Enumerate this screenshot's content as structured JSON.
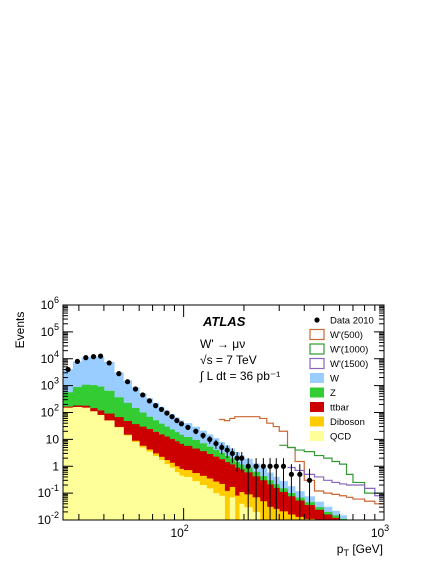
{
  "chart_data": {
    "type": "area",
    "logx": true,
    "logy": true,
    "xlim": [
      25,
      1000
    ],
    "ylim": [
      0.01,
      1000000
    ],
    "xlabel": "p_T [GeV]",
    "ylabel": "Events",
    "x_tick_labels": [
      "10^2",
      "10^3"
    ],
    "y_tick_labels": [
      "10^-2",
      "10^-1",
      "1",
      "10",
      "10^2",
      "10^3",
      "10^4",
      "10^5",
      "10^6"
    ],
    "annotations": {
      "experiment": "ATLAS",
      "process": "W' → μν",
      "energy": "√s = 7 TeV",
      "luminosity": "∫ L dt = 36 pb⁻¹"
    },
    "legend_position": "top-right",
    "bin_edges": [
      25,
      28,
      31,
      34,
      37,
      40,
      45,
      50,
      55,
      60,
      65,
      70,
      75,
      80,
      85,
      90,
      95,
      100,
      110,
      120,
      130,
      140,
      150,
      160,
      170,
      180,
      190,
      200,
      220,
      240,
      260,
      280,
      300,
      330,
      360,
      400,
      450,
      500,
      550,
      600,
      650,
      700,
      800,
      900,
      1000
    ],
    "stacked_backgrounds": [
      {
        "name": "QCD",
        "color": "#ffff99",
        "values": [
          150,
          160,
          150,
          110,
          80,
          50,
          28,
          14,
          8,
          5,
          3.5,
          2.4,
          1.7,
          1.2,
          0.9,
          0.6,
          0.45,
          0.4,
          0.28,
          0.2,
          0.15,
          0.1,
          0.08,
          0.001,
          0.07,
          0.001,
          0.04,
          0.03,
          0.02,
          0.01,
          0.001,
          0.001,
          0.001,
          0.001,
          0.001,
          0.001,
          0.001,
          0.001,
          0.001,
          0.001,
          0.001,
          0.001,
          0.001,
          0.001
        ]
      },
      {
        "name": "Diboson",
        "color": "#ffcc00",
        "values": [
          0.5,
          0.7,
          0.9,
          1,
          1.1,
          1.1,
          1.1,
          1,
          0.9,
          0.8,
          0.7,
          0.6,
          0.55,
          0.5,
          0.45,
          0.4,
          0.35,
          0.32,
          0.28,
          0.24,
          0.2,
          0.17,
          0.14,
          0.12,
          0.1,
          0.08,
          0.07,
          0.06,
          0.05,
          0.04,
          0.03,
          0.025,
          0.02,
          0.015,
          0.012,
          0.01,
          0.008,
          0.005,
          0.004,
          0.003,
          0.002,
          0.002,
          0.001,
          0.001
        ]
      },
      {
        "name": "ttbar",
        "color": "#cc0000",
        "values": [
          15,
          22,
          28,
          34,
          38,
          40,
          38,
          33,
          28,
          24,
          20,
          16,
          13,
          11,
          9,
          7.5,
          6,
          5,
          4,
          3.2,
          2.5,
          2,
          1.6,
          1.3,
          1,
          0.8,
          0.65,
          0.5,
          0.35,
          0.25,
          0.18,
          0.13,
          0.09,
          0.06,
          0.04,
          0.025,
          0.015,
          0.01,
          0.007,
          0.005,
          0.003,
          0.002,
          0.001,
          0.001
        ]
      },
      {
        "name": "Z",
        "color": "#33cc33",
        "values": [
          400,
          700,
          900,
          900,
          800,
          550,
          300,
          180,
          110,
          70,
          45,
          32,
          23,
          17,
          13,
          10,
          8,
          6.5,
          5,
          3.5,
          2.5,
          1.8,
          1.3,
          1,
          0.75,
          0.55,
          0.4,
          0.3,
          0.2,
          0.13,
          0.09,
          0.06,
          0.04,
          0.025,
          0.015,
          0.01,
          0.006,
          0.004,
          0.003,
          0.002,
          0.001,
          0.001,
          0.001,
          0.001
        ]
      },
      {
        "name": "W",
        "color": "#99ccff",
        "values": [
          3500,
          7000,
          10000,
          11000,
          10500,
          7000,
          2700,
          1300,
          700,
          420,
          270,
          180,
          125,
          90,
          65,
          48,
          36,
          28,
          20,
          14,
          10,
          7,
          5,
          3.6,
          2.6,
          1.9,
          1.4,
          1,
          0.65,
          0.42,
          0.28,
          0.19,
          0.13,
          0.08,
          0.05,
          0.03,
          0.018,
          0.011,
          0.007,
          0.004,
          0.003,
          0.002,
          0.001,
          0.001
        ]
      }
    ],
    "signal_lines": [
      {
        "name": "W'(500)",
        "color": "#cc6633",
        "values": [
          null,
          null,
          null,
          null,
          null,
          null,
          null,
          null,
          null,
          null,
          null,
          null,
          null,
          null,
          null,
          null,
          null,
          null,
          null,
          null,
          null,
          null,
          55,
          50,
          60,
          70,
          70,
          70,
          70,
          60,
          40,
          30,
          20,
          5,
          1.5,
          0.3,
          0.12,
          0.1,
          0.09,
          0.08,
          0.07,
          0.06,
          0.05,
          0.04
        ]
      },
      {
        "name": "W'(1000)",
        "color": "#339933",
        "values": [
          null,
          null,
          null,
          null,
          null,
          null,
          null,
          null,
          null,
          null,
          null,
          null,
          null,
          null,
          null,
          null,
          null,
          null,
          null,
          null,
          null,
          null,
          null,
          null,
          null,
          null,
          null,
          null,
          null,
          null,
          null,
          null,
          6,
          5,
          4,
          3.5,
          2.5,
          2,
          1.5,
          1.2,
          0.5,
          0.25,
          0.1,
          0.1
        ]
      },
      {
        "name": "W'(1500)",
        "color": "#8866bb",
        "values": [
          null,
          null,
          null,
          null,
          null,
          null,
          null,
          null,
          null,
          null,
          null,
          null,
          null,
          null,
          null,
          null,
          null,
          null,
          null,
          null,
          null,
          null,
          null,
          null,
          null,
          null,
          null,
          null,
          null,
          null,
          null,
          null,
          null,
          0.9,
          0.7,
          0.5,
          0.4,
          0.3,
          0.25,
          0.22,
          0.2,
          0.2,
          0.15,
          0.08
        ]
      }
    ],
    "data_points": {
      "name": "Data 2010",
      "x": [
        26.5,
        29.5,
        32.5,
        35.5,
        38.5,
        42.5,
        47.5,
        52.5,
        57.5,
        62.5,
        67.5,
        72.5,
        77.5,
        82.5,
        87.5,
        92.5,
        97.5,
        105,
        115,
        125,
        135,
        145,
        155,
        165,
        175,
        185,
        195,
        210,
        230,
        250,
        270,
        290,
        315,
        345,
        380,
        425
      ],
      "y": [
        4000,
        8000,
        11000,
        12000,
        12500,
        7000,
        2800,
        1400,
        750,
        450,
        270,
        180,
        130,
        95,
        70,
        50,
        38,
        28,
        20,
        14,
        10,
        7,
        5,
        4,
        3,
        2,
        2,
        1,
        1,
        1,
        1,
        1,
        1,
        0.5,
        0.5,
        0.3
      ],
      "yerr": [
        63,
        89,
        105,
        110,
        112,
        84,
        53,
        37,
        27,
        21,
        16,
        13,
        11,
        10,
        8,
        7,
        6,
        5,
        4.5,
        3.7,
        3.2,
        2.6,
        2.2,
        2,
        1.7,
        1.4,
        1.4,
        1,
        1,
        1,
        1,
        1,
        1,
        0.7,
        0.7,
        0.5
      ]
    },
    "legend": [
      {
        "label": "Data 2010",
        "kind": "marker",
        "color": "#000000"
      },
      {
        "label": "W'(500)",
        "kind": "line-box",
        "color": "#cc6633"
      },
      {
        "label": "W'(1000)",
        "kind": "line-box",
        "color": "#339933"
      },
      {
        "label": "W'(1500)",
        "kind": "line-box",
        "color": "#8866bb"
      },
      {
        "label": "W",
        "kind": "fill",
        "color": "#99ccff"
      },
      {
        "label": "Z",
        "kind": "fill",
        "color": "#33cc33"
      },
      {
        "label": "ttbar",
        "kind": "fill",
        "color": "#cc0000"
      },
      {
        "label": "Diboson",
        "kind": "fill",
        "color": "#ffcc00"
      },
      {
        "label": "QCD",
        "kind": "fill",
        "color": "#ffff99"
      }
    ]
  }
}
